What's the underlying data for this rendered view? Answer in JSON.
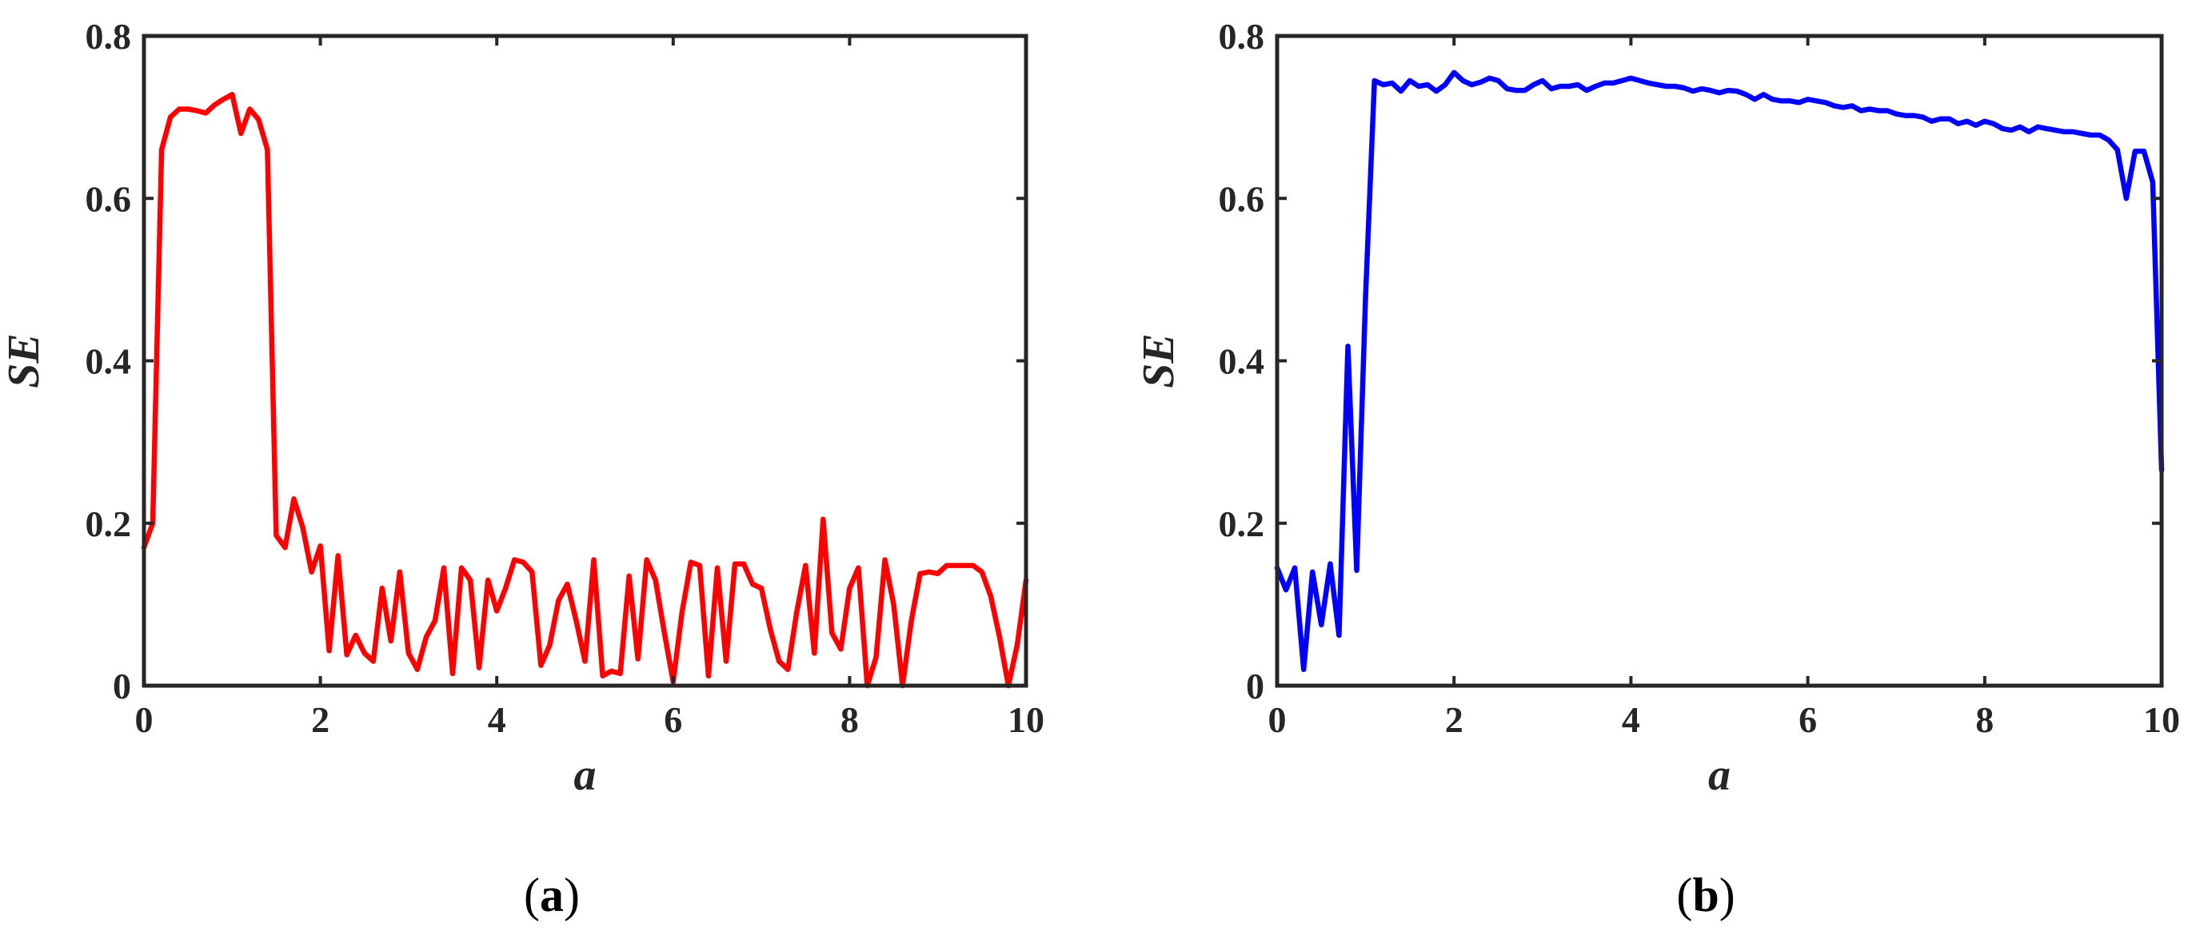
{
  "chart_data": [
    {
      "type": "line",
      "caption": "(a)",
      "xlabel": "a",
      "ylabel": "SE",
      "xlim": [
        0,
        10
      ],
      "ylim": [
        0,
        0.8
      ],
      "xticks": [
        "0",
        "2",
        "4",
        "6",
        "8",
        "10"
      ],
      "yticks": [
        "0",
        "0.2",
        "0.4",
        "0.6",
        "0.8"
      ],
      "grid": false,
      "color": "#ff0000",
      "x": [
        0,
        0.1,
        0.2,
        0.3,
        0.4,
        0.5,
        0.6,
        0.7,
        0.8,
        0.9,
        1.0,
        1.1,
        1.2,
        1.3,
        1.4,
        1.5,
        1.6,
        1.7,
        1.8,
        1.9,
        2.0,
        2.1,
        2.2,
        2.3,
        2.4,
        2.5,
        2.6,
        2.7,
        2.8,
        2.9,
        3.0,
        3.1,
        3.2,
        3.3,
        3.4,
        3.5,
        3.6,
        3.7,
        3.8,
        3.9,
        4.0,
        4.1,
        4.2,
        4.3,
        4.4,
        4.5,
        4.6,
        4.7,
        4.8,
        4.9,
        5.0,
        5.1,
        5.2,
        5.3,
        5.4,
        5.5,
        5.6,
        5.7,
        5.8,
        5.9,
        6.0,
        6.1,
        6.2,
        6.3,
        6.4,
        6.5,
        6.6,
        6.7,
        6.8,
        6.9,
        7.0,
        7.1,
        7.2,
        7.3,
        7.4,
        7.5,
        7.6,
        7.7,
        7.8,
        7.9,
        8.0,
        8.1,
        8.2,
        8.3,
        8.4,
        8.5,
        8.6,
        8.7,
        8.8,
        8.9,
        9.0,
        9.1,
        9.2,
        9.3,
        9.4,
        9.5,
        9.6,
        9.7,
        9.8,
        9.9,
        10.0
      ],
      "y": [
        0.17,
        0.2,
        0.66,
        0.7,
        0.71,
        0.71,
        0.708,
        0.705,
        0.715,
        0.722,
        0.728,
        0.68,
        0.71,
        0.697,
        0.66,
        0.185,
        0.17,
        0.23,
        0.195,
        0.14,
        0.172,
        0.043,
        0.16,
        0.038,
        0.062,
        0.04,
        0.03,
        0.12,
        0.055,
        0.14,
        0.04,
        0.02,
        0.06,
        0.08,
        0.145,
        0.015,
        0.145,
        0.13,
        0.022,
        0.13,
        0.092,
        0.12,
        0.155,
        0.152,
        0.14,
        0.025,
        0.05,
        0.105,
        0.125,
        0.08,
        0.03,
        0.155,
        0.012,
        0.018,
        0.015,
        0.135,
        0.033,
        0.155,
        0.13,
        0.065,
        0.005,
        0.09,
        0.152,
        0.148,
        0.012,
        0.145,
        0.03,
        0.15,
        0.15,
        0.125,
        0.12,
        0.07,
        0.03,
        0.02,
        0.09,
        0.148,
        0.04,
        0.205,
        0.065,
        0.045,
        0.12,
        0.145,
        0.0,
        0.035,
        0.155,
        0.1,
        0.0,
        0.08,
        0.138,
        0.14,
        0.138,
        0.148,
        0.148,
        0.148,
        0.148,
        0.14,
        0.11,
        0.06,
        0.0,
        0.05,
        0.13
      ]
    },
    {
      "type": "line",
      "caption": "(b)",
      "xlabel": "a",
      "ylabel": "SE",
      "xlim": [
        0,
        10
      ],
      "ylim": [
        0,
        0.8
      ],
      "xticks": [
        "0",
        "2",
        "4",
        "6",
        "8",
        "10"
      ],
      "yticks": [
        "0",
        "0.2",
        "0.4",
        "0.6",
        "0.8"
      ],
      "grid": false,
      "color": "#0000ff",
      "x": [
        0,
        0.1,
        0.2,
        0.3,
        0.4,
        0.5,
        0.6,
        0.7,
        0.8,
        0.9,
        1.0,
        1.1,
        1.2,
        1.3,
        1.4,
        1.5,
        1.6,
        1.7,
        1.8,
        1.9,
        2.0,
        2.1,
        2.2,
        2.3,
        2.4,
        2.5,
        2.6,
        2.7,
        2.8,
        2.9,
        3.0,
        3.1,
        3.2,
        3.3,
        3.4,
        3.5,
        3.6,
        3.7,
        3.8,
        3.9,
        4.0,
        4.1,
        4.2,
        4.3,
        4.4,
        4.5,
        4.6,
        4.7,
        4.8,
        4.9,
        5.0,
        5.1,
        5.2,
        5.3,
        5.4,
        5.5,
        5.6,
        5.7,
        5.8,
        5.9,
        6.0,
        6.1,
        6.2,
        6.3,
        6.4,
        6.5,
        6.6,
        6.7,
        6.8,
        6.9,
        7.0,
        7.1,
        7.2,
        7.3,
        7.4,
        7.5,
        7.6,
        7.7,
        7.8,
        7.9,
        8.0,
        8.1,
        8.2,
        8.3,
        8.4,
        8.5,
        8.6,
        8.7,
        8.8,
        8.9,
        9.0,
        9.1,
        9.2,
        9.3,
        9.4,
        9.5,
        9.6,
        9.7,
        9.8,
        9.9,
        10.0
      ],
      "y": [
        0.145,
        0.118,
        0.145,
        0.02,
        0.14,
        0.075,
        0.15,
        0.062,
        0.418,
        0.142,
        0.48,
        0.745,
        0.74,
        0.742,
        0.732,
        0.745,
        0.738,
        0.74,
        0.732,
        0.74,
        0.755,
        0.745,
        0.74,
        0.743,
        0.748,
        0.745,
        0.735,
        0.733,
        0.733,
        0.74,
        0.745,
        0.735,
        0.738,
        0.738,
        0.74,
        0.733,
        0.738,
        0.742,
        0.742,
        0.745,
        0.748,
        0.745,
        0.742,
        0.74,
        0.738,
        0.738,
        0.736,
        0.732,
        0.735,
        0.733,
        0.73,
        0.733,
        0.732,
        0.728,
        0.722,
        0.728,
        0.722,
        0.72,
        0.72,
        0.718,
        0.722,
        0.72,
        0.718,
        0.714,
        0.712,
        0.714,
        0.708,
        0.71,
        0.708,
        0.708,
        0.704,
        0.702,
        0.702,
        0.7,
        0.695,
        0.698,
        0.698,
        0.692,
        0.695,
        0.69,
        0.695,
        0.692,
        0.686,
        0.684,
        0.688,
        0.682,
        0.688,
        0.686,
        0.684,
        0.682,
        0.682,
        0.68,
        0.678,
        0.678,
        0.672,
        0.66,
        0.6,
        0.658,
        0.658,
        0.62,
        0.265
      ]
    }
  ]
}
